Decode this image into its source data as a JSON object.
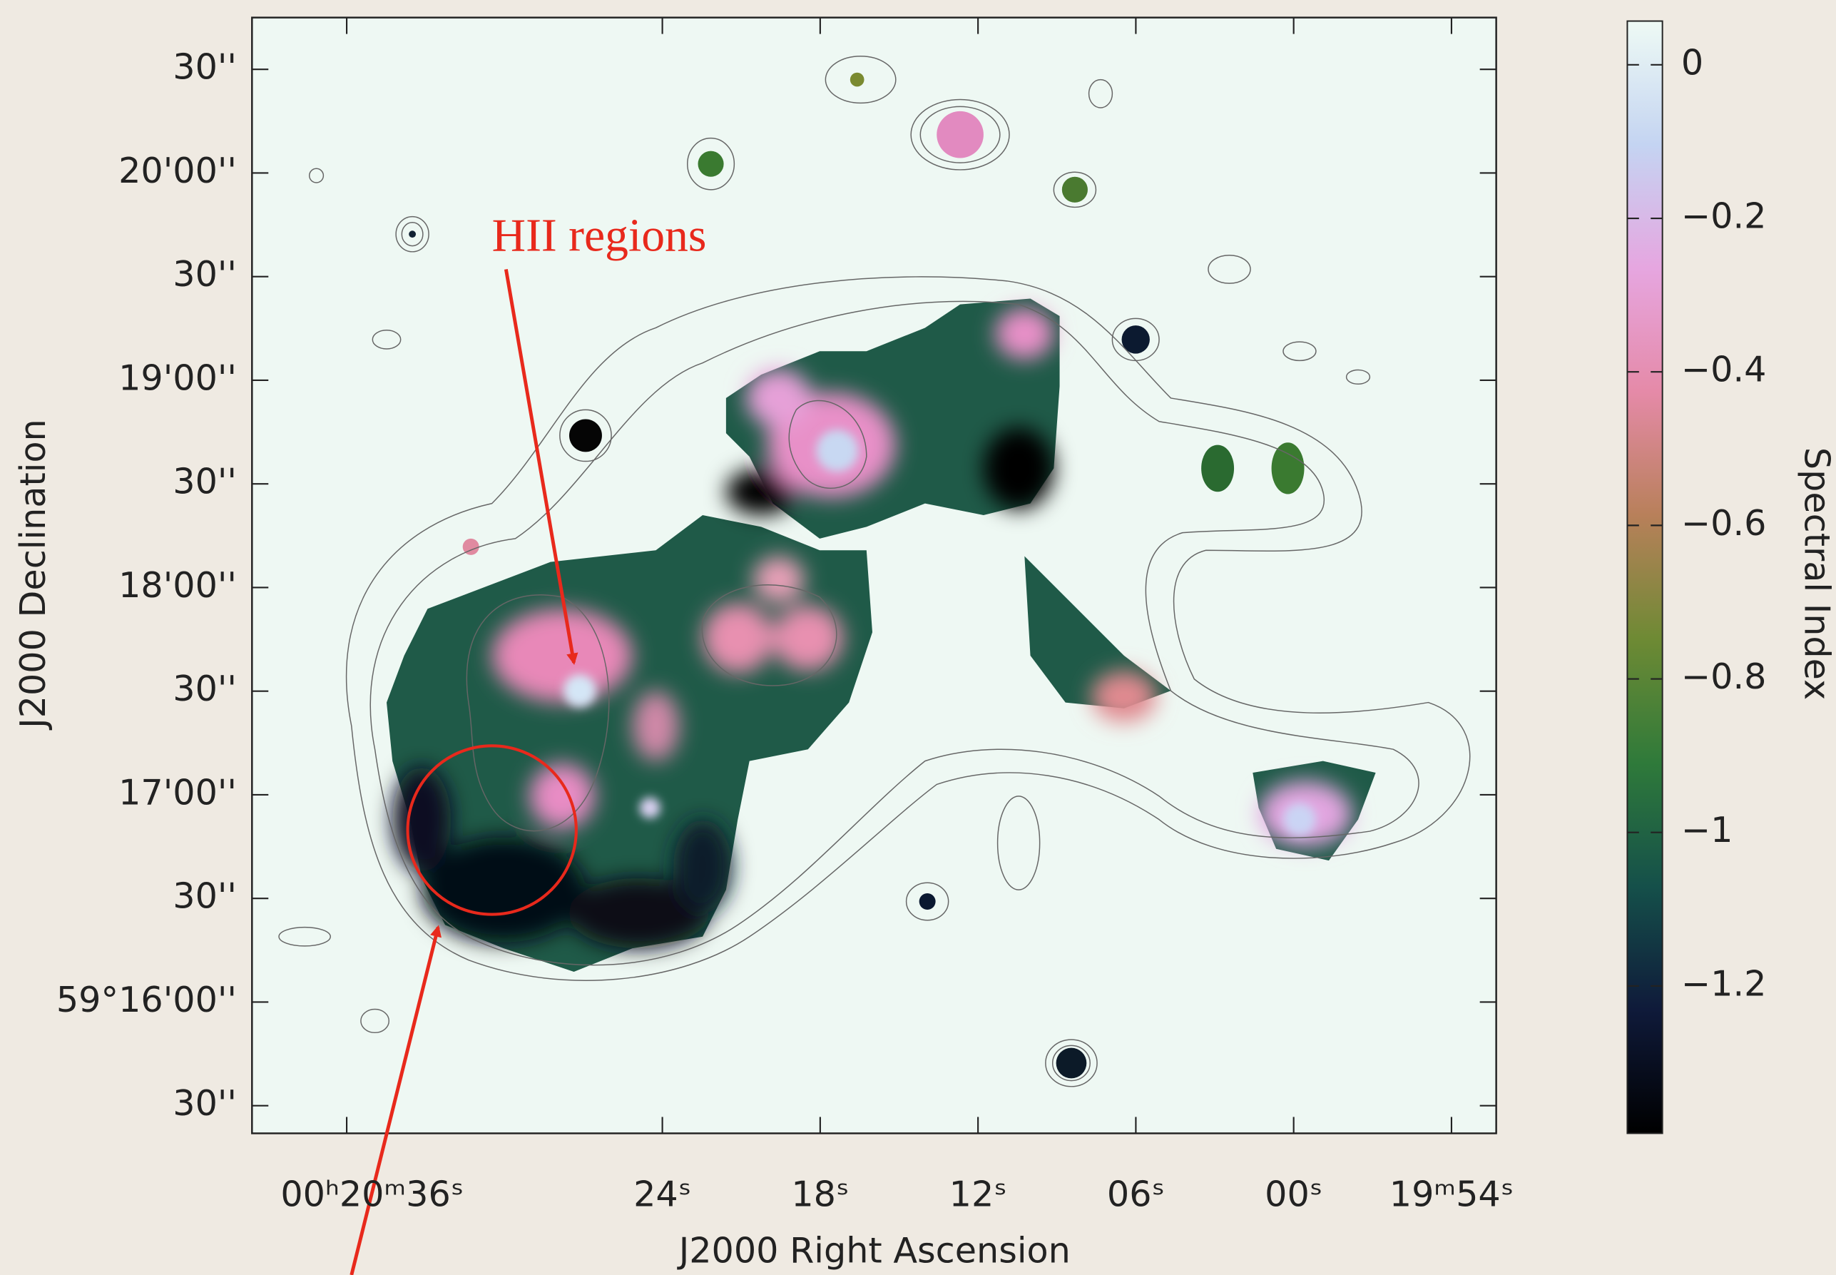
{
  "chart_data": {
    "type": "image",
    "xlabel": "J2000 Right Ascension",
    "ylabel": "J2000 Declination",
    "xlim": [
      1239.6,
      1192.3
    ],
    "xticks": [
      {
        "value": 1236,
        "label": "00ʰ20ᵐ36ˢ"
      },
      {
        "value": 1224,
        "label": "24ˢ"
      },
      {
        "value": 1218,
        "label": "18ˢ"
      },
      {
        "value": 1212,
        "label": "12ˢ"
      },
      {
        "value": 1206,
        "label": "06ˢ"
      },
      {
        "value": 1200,
        "label": "00ˢ"
      },
      {
        "value": 1194,
        "label": "19ᵐ54ˢ"
      }
    ],
    "ylim": [
      213322,
      213645
    ],
    "yticks": [
      {
        "value": 213330,
        "label": "30''"
      },
      {
        "value": 213360,
        "label": "59°16'00''"
      },
      {
        "value": 213390,
        "label": "30''"
      },
      {
        "value": 213420,
        "label": "17'00''"
      },
      {
        "value": 213450,
        "label": "30''"
      },
      {
        "value": 213480,
        "label": "18'00''"
      },
      {
        "value": 213510,
        "label": "30''"
      },
      {
        "value": 213540,
        "label": "19'00''"
      },
      {
        "value": 213570,
        "label": "30''"
      },
      {
        "value": 213600,
        "label": "20'00''"
      },
      {
        "value": 213630,
        "label": "30''"
      }
    ],
    "colorbar": {
      "label": "Spectral Index",
      "clim": [
        -1.392,
        0.057
      ],
      "ticks": [
        0,
        {
          "value": -0.2,
          "label": "−0.2"
        },
        {
          "value": -0.4,
          "label": "−0.4"
        },
        {
          "value": -0.6,
          "label": "−0.6"
        },
        {
          "value": -0.8,
          "label": "−0.8"
        },
        {
          "value": -1,
          "label": "−1"
        },
        {
          "value": -1.2,
          "label": "−1.2"
        }
      ],
      "colormap": [
        "#000000",
        "#0f1a3a",
        "#15504a",
        "#2f7a3a",
        "#6e8a34",
        "#b8805a",
        "#e58aa8",
        "#e6a6e0",
        "#c4d4f2",
        "#eefaf4"
      ]
    },
    "annotations": [
      "HII regions"
    ]
  }
}
